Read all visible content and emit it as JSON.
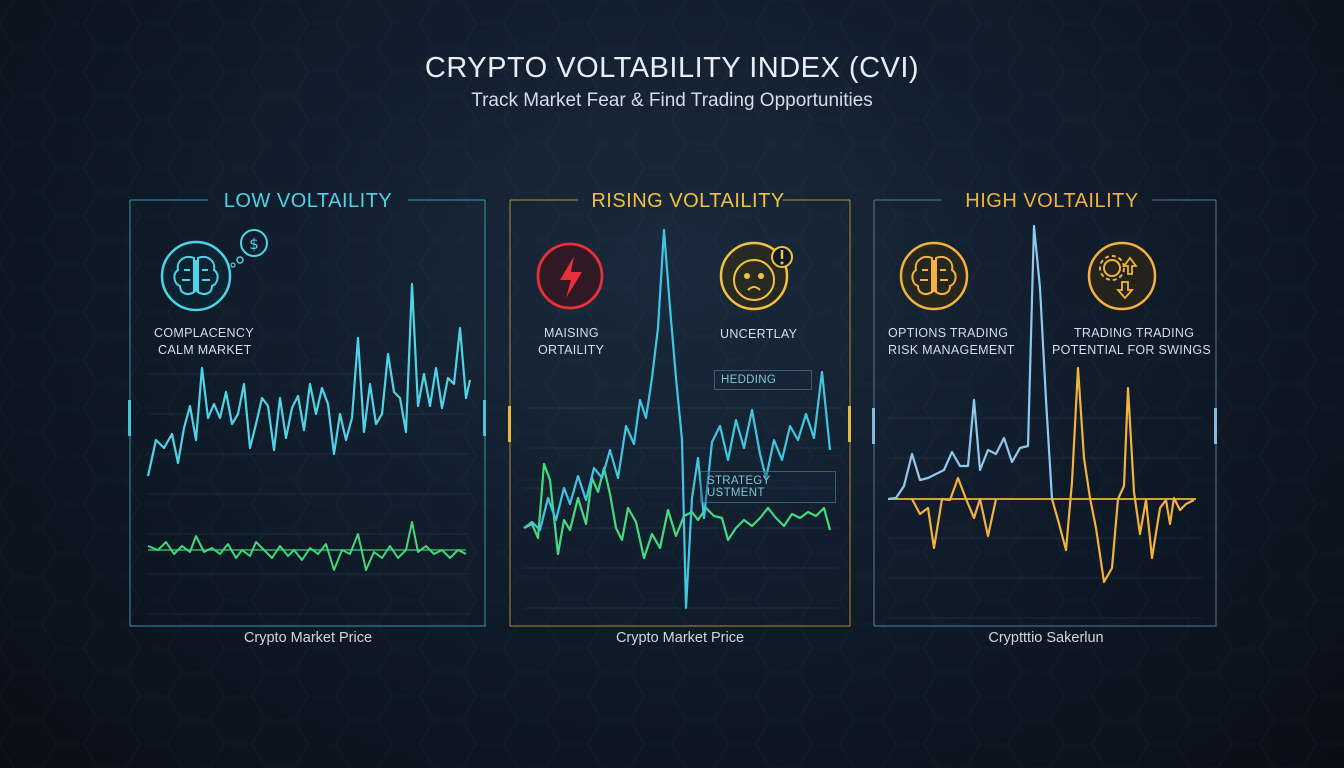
{
  "header": {
    "title": "CRYPTO VOLTABILITY INDEX (CVI)",
    "subtitle": "Track Market Fear & Find Trading Opportunities"
  },
  "colors": {
    "low": "#4fd3e6",
    "low_secondary": "#45d67a",
    "rising": "#f2c23d",
    "rising_main": "#3fc6e0",
    "rising_secondary": "#46d97e",
    "high": "#f2b23d",
    "high_main": "#8ec9ec",
    "alert": "#e8303a"
  },
  "panels": [
    {
      "title": "LOW VOLTAILITY",
      "icons": [
        "brain-icon",
        "dollar-bubble-icon"
      ],
      "labels": [
        "COMPLACENCY",
        "CALM MARKET"
      ],
      "caption": "Crypto Market Price"
    },
    {
      "title": "RISING VOLTAILITY",
      "icons": [
        "lightning-icon",
        "worried-face-icon"
      ],
      "labels": [
        "MAISING",
        "ORTAILITY",
        "UNCERTLAY"
      ],
      "tags": [
        "HEDDING",
        "STRATEGY USTMENT"
      ],
      "caption": "Crypto Market Price"
    },
    {
      "title": "HIGH VOLTAILITY",
      "icons": [
        "brain-icon",
        "gears-arrows-icon"
      ],
      "labels": [
        "OPTIONS TRADING",
        "RISK MANAGEMENT",
        "TRADING TRADING",
        "POTENTIAL FOR SWINGS"
      ],
      "caption": "Cryptttio Sakerlun"
    }
  ]
}
